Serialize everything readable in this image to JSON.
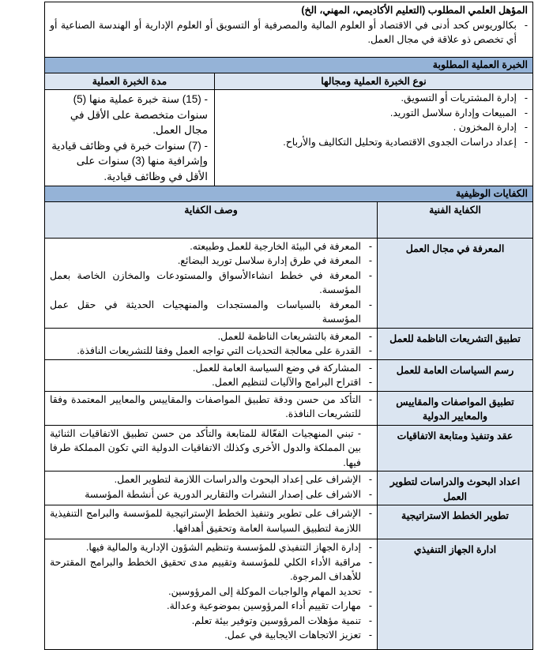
{
  "qualification": {
    "title": "المؤهل العلمي المطلوب (التعليم الأكاديمي، المهني، الخ)",
    "items": [
      "بكالوريوس كحد أدنى في الاقتصاد أو العلوم المالية والمصرفية أو التسويق أو العلوم الإدارية أو الهندسة الصناعية أو أي تخصص ذو علاقة في مجال العمل."
    ]
  },
  "experience": {
    "title": "الخبرة العملية المطلوبة",
    "type_header": "نوع الخبرة العملية ومجالها",
    "duration_header": "مدة الخبرة العملية",
    "types": [
      "إدارة المشتريات أو التسويق.",
      "المبيعات وإدارة سلاسل التوريد.",
      "إدارة المخزون .",
      "إعداد دراسات الجدوى الاقتصادية وتحليل التكاليف والأرباح."
    ],
    "durations": [
      "- (15) سنة خبرة عملية منها (5) سنوات متخصصة على الأقل في مجال العمل.",
      "- (7) سنوات خبرة في وظائف قيادية وإشرافية منها (3) سنوات على الأقل في وظائف قيادية."
    ]
  },
  "competencies": {
    "title": "الكفايات الوظيفية",
    "name_header": "الكفاية الفنية",
    "desc_header": "وصف الكفاية",
    "rows": [
      {
        "name": "المعرفة في مجال العمل",
        "items": [
          "المعرفة في البيئة الخارجية للعمل وطبيعته.",
          "المعرفة في طرق إدارة سلاسل توريد البضائع.",
          "المعرفة في خطط انشاءالأسواق والمستودعات والمخازن الخاصة بعمل المؤسسة.",
          "المعرفة بالسياسات والمستجدات والمنهجيات الحديثة في حقل عمل المؤسسة"
        ]
      },
      {
        "name": "تطبيق التشريعات الناظمة للعمل",
        "items": [
          "المعرفة بالتشريعات الناظمة للعمل.",
          "القدرة على معالجة التحديات التي تواجه العمل وفقا للتشريعات النافذة."
        ]
      },
      {
        "name": "رسم السياسات العامة للعمل",
        "items": [
          "المشاركة في وضع السياسة العامة للعمل.",
          "اقتراح البرامج والآليات لتنظيم العمل."
        ]
      },
      {
        "name": "تطبيق المواصفات والمقاييس والمعايير الدولية",
        "items": [
          "التأكد من حسن ودقة تطبيق المواصفات والمقاييس والمعايير المعتمدة وفقا للتشريعات النافذة."
        ]
      },
      {
        "name": "عقد وتنفيذ ومتابعة الاتفاقيات",
        "items": [
          "- تبني المنهجيات الفعّالة للمتابعة والتأكد من حسن تطبيق الاتفاقيات الثنائية بين المملكة والدول الأخرى وكذلك الاتفاقيات الدولية التي تكون المملكة طرفا فيها."
        ]
      },
      {
        "name": "اعداد البحوث والدراسات لتطوير العمل",
        "items": [
          "الإشراف على إعداد البحوث والدراسات اللازمة لتطوير العمل.",
          "الاشراف على إصدار النشرات والتقارير الدورية عن أنشطة المؤسسة"
        ]
      },
      {
        "name": "تطوير الخطط الاستراتيجية",
        "items": [
          "الإشراف على تطوير وتنفيذ الخطط الإستراتيجية للمؤسسة والبرامج التنفيذية اللازمة لتطبيق السياسة العامة وتحقيق أهدافها."
        ]
      },
      {
        "name": "ادارة الجهاز التنفيذي",
        "items": [
          "إدارة الجهاز التنفيذي للمؤسسة وتنظيم الشؤون الإدارية والمالية فيها.",
          "مراقبة الأداء الكلي للمؤسسة وتقييم مدى تحقيق الخطط والبرامج المقترحة للأهداف المرجوة.",
          "تحديد المهام والواجبات الموكلة إلى المرؤوسين.",
          "مهارات تقييم أداء المرؤوسين بموضوعية وعدالة.",
          "تنمية مؤهلات المرؤوسين وتوفير بيئة تعلم.",
          "تعزيز الاتجاهات الايجابية في عمل."
        ]
      }
    ]
  },
  "colors": {
    "section_header": "#95b3d7",
    "sub_header": "#dbe5f1"
  }
}
